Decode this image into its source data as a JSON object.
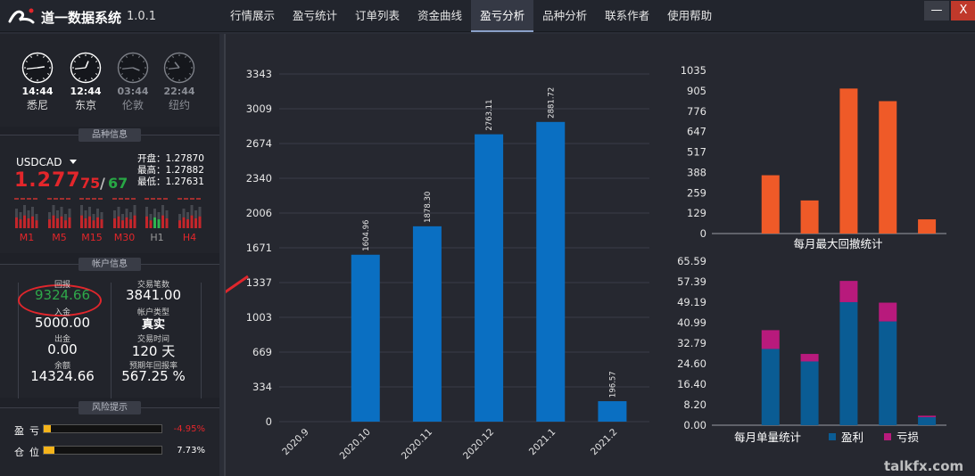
{
  "app": {
    "title": "道一数据系统",
    "version": "1.0.1"
  },
  "nav": [
    "行情展示",
    "盈亏统计",
    "订单列表",
    "资金曲线",
    "盈亏分析",
    "品种分析",
    "联系作者",
    "使用帮助"
  ],
  "nav_active": 4,
  "window": {
    "minimize": "—",
    "close": "X"
  },
  "clocks": [
    {
      "time": "14:44",
      "city": "悉尼",
      "active": true,
      "hour": 14,
      "minute": 44
    },
    {
      "time": "12:44",
      "city": "东京",
      "active": true,
      "hour": 12,
      "minute": 44
    },
    {
      "time": "03:44",
      "city": "伦敦",
      "active": false,
      "hour": 3,
      "minute": 44
    },
    {
      "time": "22:44",
      "city": "纽约",
      "active": false,
      "hour": 22,
      "minute": 44
    }
  ],
  "symbol_section": {
    "title": "品种信息",
    "symbol": "USDCAD",
    "price_main": "1.277",
    "price_sell_tail": "75",
    "price_slash": "/",
    "price_buy_tail": "67",
    "open": "开盘：1.27870",
    "high": "最高：1.27882",
    "low": "最低：1.27631",
    "timeframes": [
      "M1",
      "M5",
      "M15",
      "M30",
      "H1",
      "H4"
    ]
  },
  "account_section": {
    "title": "帐户信息",
    "return_label": "回报",
    "return_value": "9324.66",
    "trades_label": "交易笔数",
    "trades_value": "3841.00",
    "deposit_label": "入金",
    "deposit_value": "5000.00",
    "type_label": "帐户类型",
    "type_value": "真实",
    "withdraw_label": "出金",
    "withdraw_value": "0.00",
    "days_label": "交易时间",
    "days_value": "120 天",
    "balance_label": "余额",
    "balance_value": "14324.66",
    "annual_label": "预期年回报率",
    "annual_value": "567.25 %"
  },
  "risk_section": {
    "title": "风险提示",
    "pl_label": "盈亏",
    "pl_value": "-4.95%",
    "pl_fill": 0.0495,
    "pos_label": "仓位",
    "pos_value": "7.73%",
    "pos_fill": 0.0773
  },
  "chart_data": [
    {
      "type": "bar",
      "categories": [
        "2020.9",
        "2020.10",
        "2020.11",
        "2020.12",
        "2021.1",
        "2021.2"
      ],
      "values": [
        0,
        1604.96,
        1878.3,
        2763.11,
        2881.72,
        196.57
      ],
      "value_labels": [
        "",
        "1604.96",
        "1878.30",
        "2763.11",
        "2881.72",
        "196.57"
      ],
      "yticks": [
        "0",
        "334",
        "669",
        "1003",
        "1337",
        "1671",
        "2006",
        "2340",
        "2674",
        "3009",
        "3343"
      ],
      "ylim": [
        0,
        3343
      ],
      "color": "#0a6fc2"
    },
    {
      "type": "bar",
      "title": "每月最大回撤统计",
      "values": [
        0,
        370,
        210,
        920,
        840,
        90
      ],
      "yticks": [
        "0",
        "129",
        "259",
        "388",
        "517",
        "647",
        "776",
        "905",
        "1035"
      ],
      "ylim": [
        0,
        1035
      ],
      "color": "#ef5a28"
    },
    {
      "type": "bar",
      "title": "每月单量统计",
      "stacked": true,
      "series": [
        {
          "name": "盈利",
          "values": [
            0,
            30.5,
            25.5,
            49.2,
            41.5,
            3.2
          ],
          "color": "#0a5c94"
        },
        {
          "name": "亏损",
          "values": [
            0,
            7.5,
            3.0,
            8.5,
            7.5,
            0.6
          ],
          "color": "#b81a7c"
        }
      ],
      "yticks": [
        "0.00",
        "8.20",
        "16.40",
        "24.60",
        "32.79",
        "40.99",
        "49.19",
        "57.39",
        "65.59"
      ],
      "ylim": [
        0,
        65.59
      ]
    }
  ],
  "watermark": "talkfx.com"
}
